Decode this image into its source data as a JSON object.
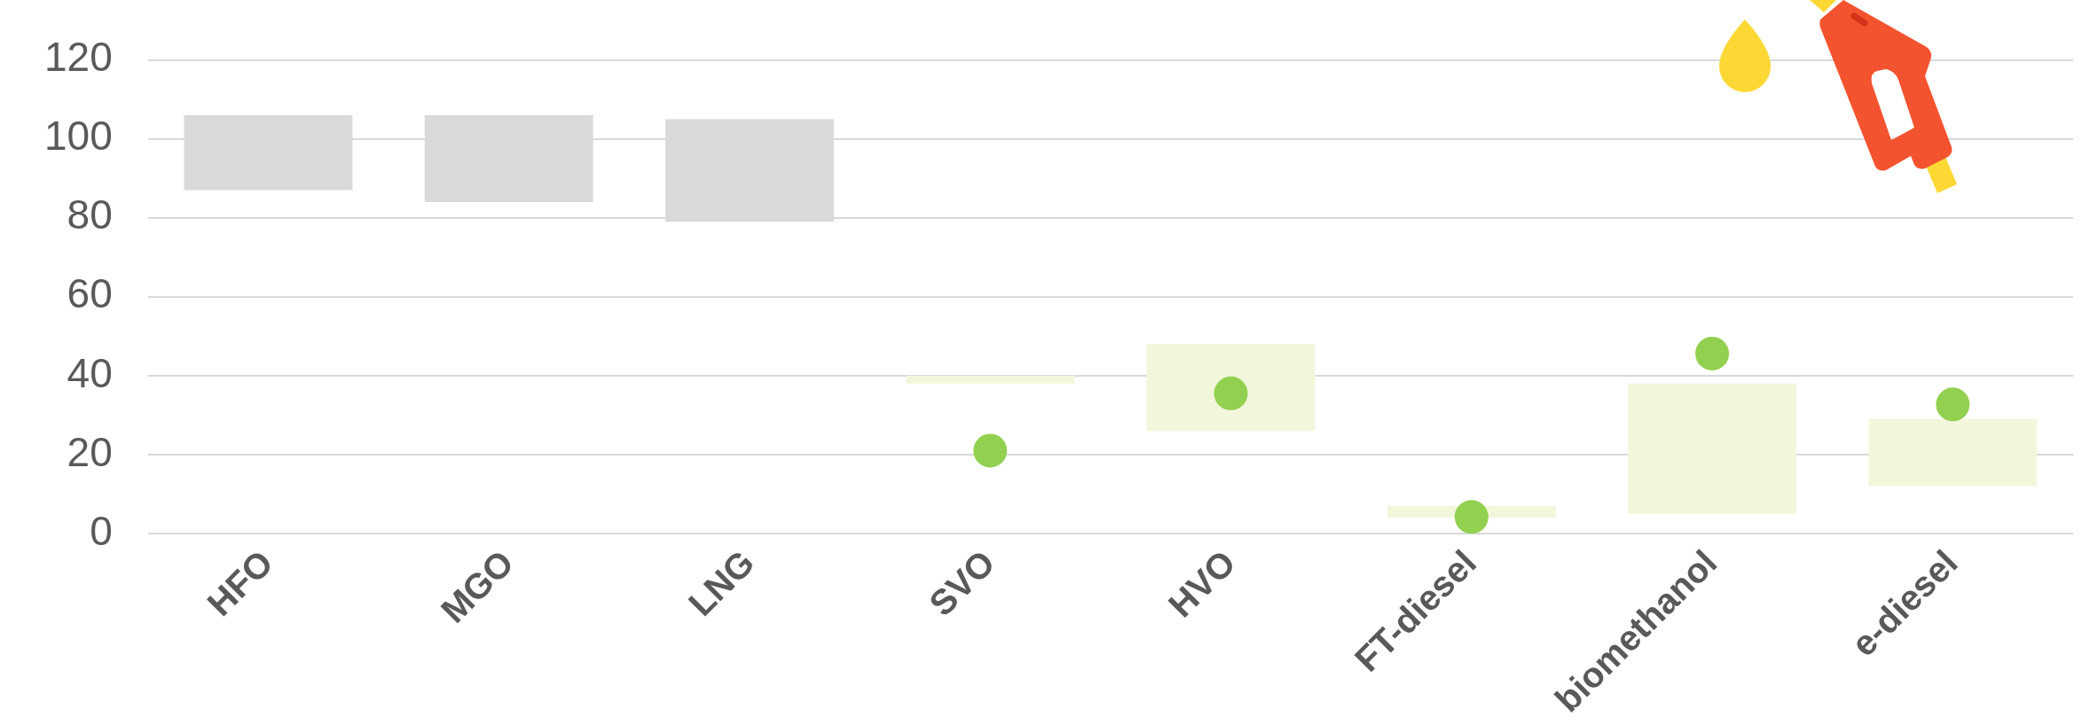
{
  "chart_data": {
    "type": "bar",
    "categories": [
      "HFO",
      "MGO",
      "LNG",
      "SVO",
      "HVO",
      "FT-diesel",
      "biomethanol",
      "e-diesel"
    ],
    "series": [
      {
        "values": [
          19,
          22,
          26,
          2,
          22,
          3,
          33,
          17
        ],
        "base": [
          87,
          84,
          79,
          38,
          26,
          4,
          5,
          12
        ],
        "colors": [
          "#d9d9d9",
          "#d9d9d9",
          "#d9d9d9",
          "#f2f7dc",
          "#f2f7dc",
          "#f2f7dc",
          "#f2f7dc",
          "#f2f7dc"
        ]
      },
      {
        "type": "scatter",
        "color": "#92d050",
        "values": [
          null,
          null,
          null,
          21,
          35.5,
          4.2,
          45.6,
          32.7
        ]
      }
    ],
    "ylim": [
      0,
      120
    ],
    "yticks": [
      0,
      20,
      40,
      60,
      80,
      100,
      120
    ],
    "grid": "y",
    "legend": false,
    "marker": "circle"
  }
}
